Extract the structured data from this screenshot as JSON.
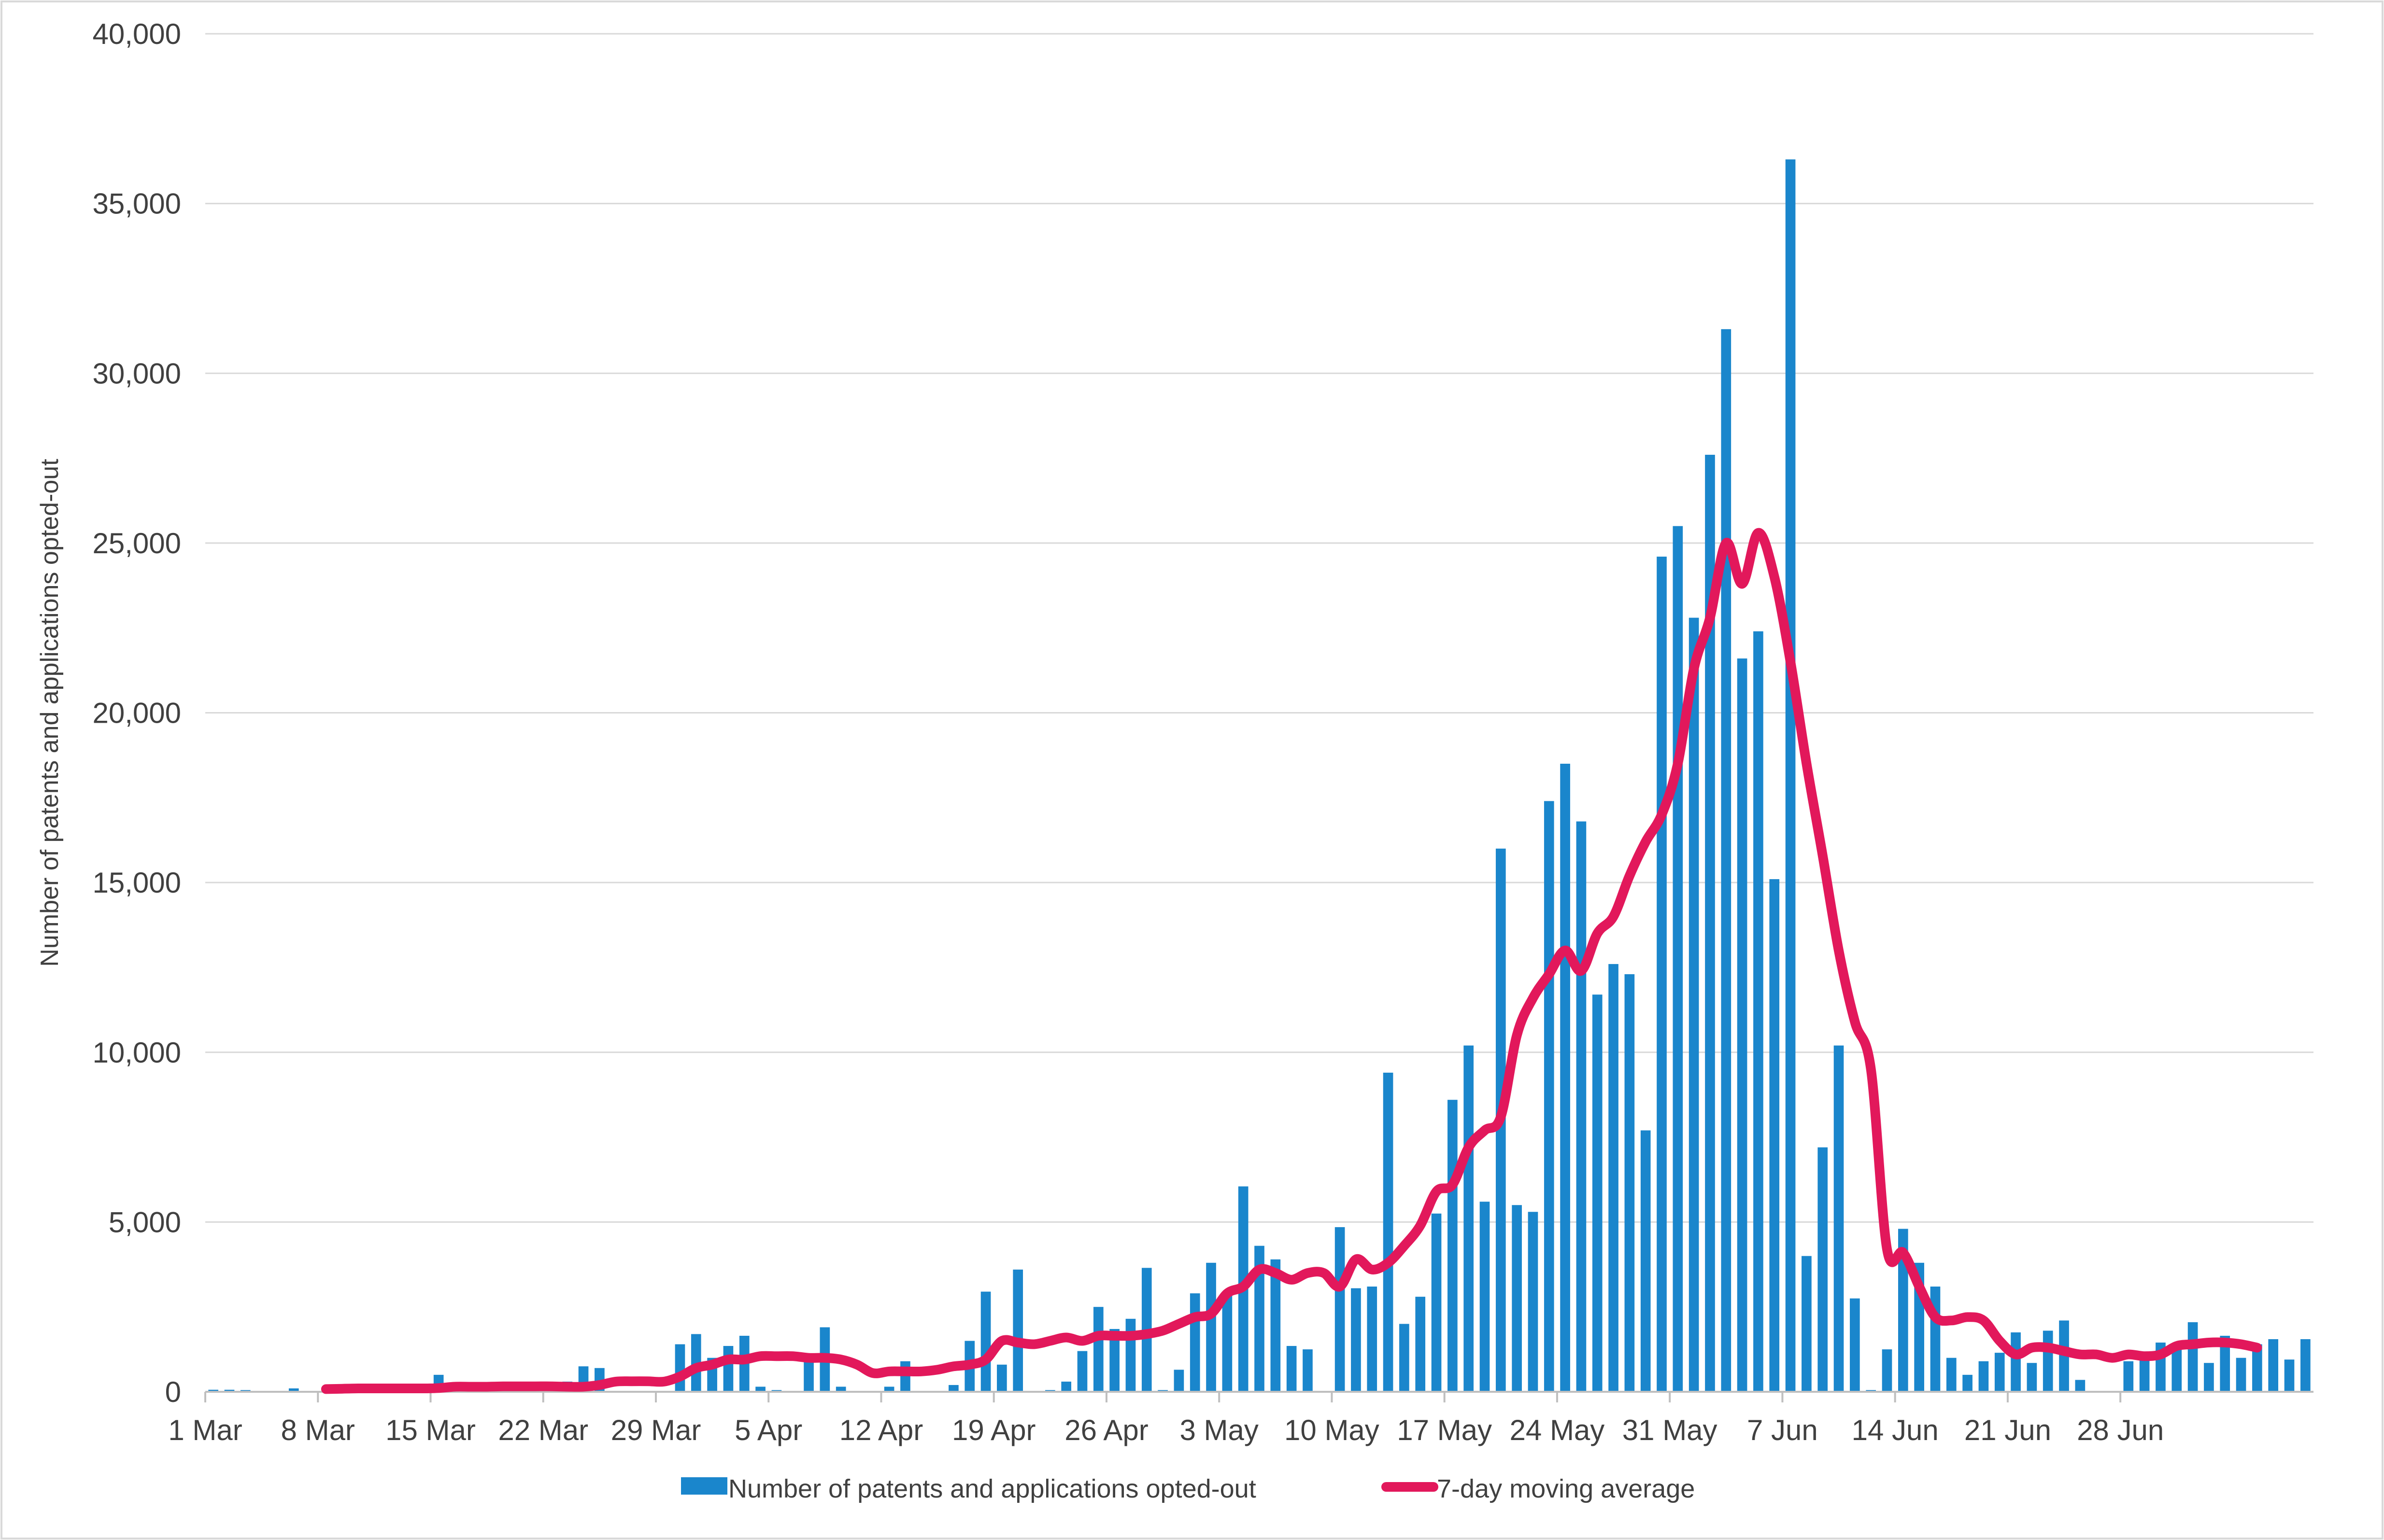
{
  "chart_data": {
    "type": "bar",
    "ylabel": "Number of patents and applications opted-out",
    "xlabel": "",
    "ylim": [
      0,
      40000
    ],
    "y_ticks": [
      0,
      5000,
      10000,
      15000,
      20000,
      25000,
      30000,
      35000,
      40000
    ],
    "y_tick_labels": [
      "0",
      "5,000",
      "10,000",
      "15,000",
      "20,000",
      "25,000",
      "30,000",
      "35,000",
      "40,000"
    ],
    "x_tick_labels": [
      "1 Mar",
      "8 Mar",
      "15 Mar",
      "22 Mar",
      "29 Mar",
      "5 Apr",
      "12 Apr",
      "19 Apr",
      "26 Apr",
      "3 May",
      "10 May",
      "17 May",
      "24 May",
      "31 May",
      "7 Jun",
      "14 Jun",
      "21 Jun",
      "28 Jun"
    ],
    "legend_position": "bottom",
    "grid": "horizontal",
    "colors": {
      "bars": "#1a86cc",
      "line": "#e2185b",
      "grid": "#d9d9d9",
      "axis": "#bfbfbf"
    },
    "series": [
      {
        "name": "Number of patents and applications opted-out",
        "type": "bar",
        "values": [
          60,
          60,
          50,
          0,
          0,
          100,
          0,
          0,
          0,
          0,
          0,
          0,
          0,
          0,
          500,
          0,
          0,
          0,
          0,
          0,
          0,
          0,
          300,
          750,
          700,
          0,
          0,
          0,
          0,
          1400,
          1700,
          1000,
          1350,
          1650,
          150,
          50,
          0,
          1000,
          1900,
          150,
          0,
          0,
          150,
          900,
          0,
          0,
          200,
          1500,
          2950,
          800,
          3600,
          0,
          50,
          300,
          1200,
          2500,
          1850,
          2150,
          3650,
          50,
          650,
          2900,
          3800,
          2850,
          6050,
          4300,
          3900,
          1350,
          1250,
          0,
          4850,
          3050,
          3100,
          9400,
          2000,
          2800,
          5250,
          8600,
          10200,
          5600,
          16000,
          5500,
          5300,
          17400,
          18500,
          16800,
          11700,
          12600,
          12300,
          7700,
          24600,
          25500,
          22800,
          27600,
          31300,
          21600,
          22400,
          15100,
          36300,
          4000,
          7200,
          10200,
          2750,
          50,
          1250,
          4800,
          3800,
          3100,
          1000,
          500,
          900,
          1150,
          1750,
          850,
          1800,
          2100,
          350,
          0,
          0,
          900,
          1000,
          1450,
          1400,
          2050,
          850,
          1650,
          1000,
          1400,
          1550,
          950,
          1550
        ],
        "color": "#1a86cc"
      },
      {
        "name": "7-day moving average",
        "type": "line",
        "x_start_index": 7,
        "values": [
          80,
          90,
          100,
          100,
          100,
          100,
          100,
          110,
          150,
          150,
          150,
          160,
          160,
          160,
          160,
          150,
          150,
          200,
          300,
          310,
          310,
          300,
          450,
          700,
          800,
          950,
          950,
          1050,
          1050,
          1050,
          1000,
          1000,
          950,
          800,
          550,
          600,
          600,
          600,
          650,
          750,
          800,
          950,
          1500,
          1450,
          1400,
          1500,
          1600,
          1500,
          1650,
          1650,
          1650,
          1700,
          1800,
          2000,
          2200,
          2300,
          2900,
          3100,
          3600,
          3500,
          3300,
          3500,
          3500,
          3100,
          3900,
          3600,
          3800,
          4300,
          4900,
          5900,
          6100,
          7200,
          7700,
          8100,
          10500,
          11600,
          12300,
          13000,
          12400,
          13500,
          14000,
          15200,
          16200,
          17000,
          18500,
          21300,
          22800,
          25000,
          23800,
          25300,
          24000,
          21500,
          18500,
          15800,
          13000,
          10900,
          9500,
          4200,
          4100,
          3100,
          2200,
          2100,
          2200,
          2100,
          1500,
          1100,
          1300,
          1300,
          1200,
          1100,
          1100,
          1000,
          1100,
          1050,
          1100,
          1350,
          1400,
          1450,
          1450,
          1400,
          1300
        ],
        "color": "#e2185b"
      }
    ]
  }
}
